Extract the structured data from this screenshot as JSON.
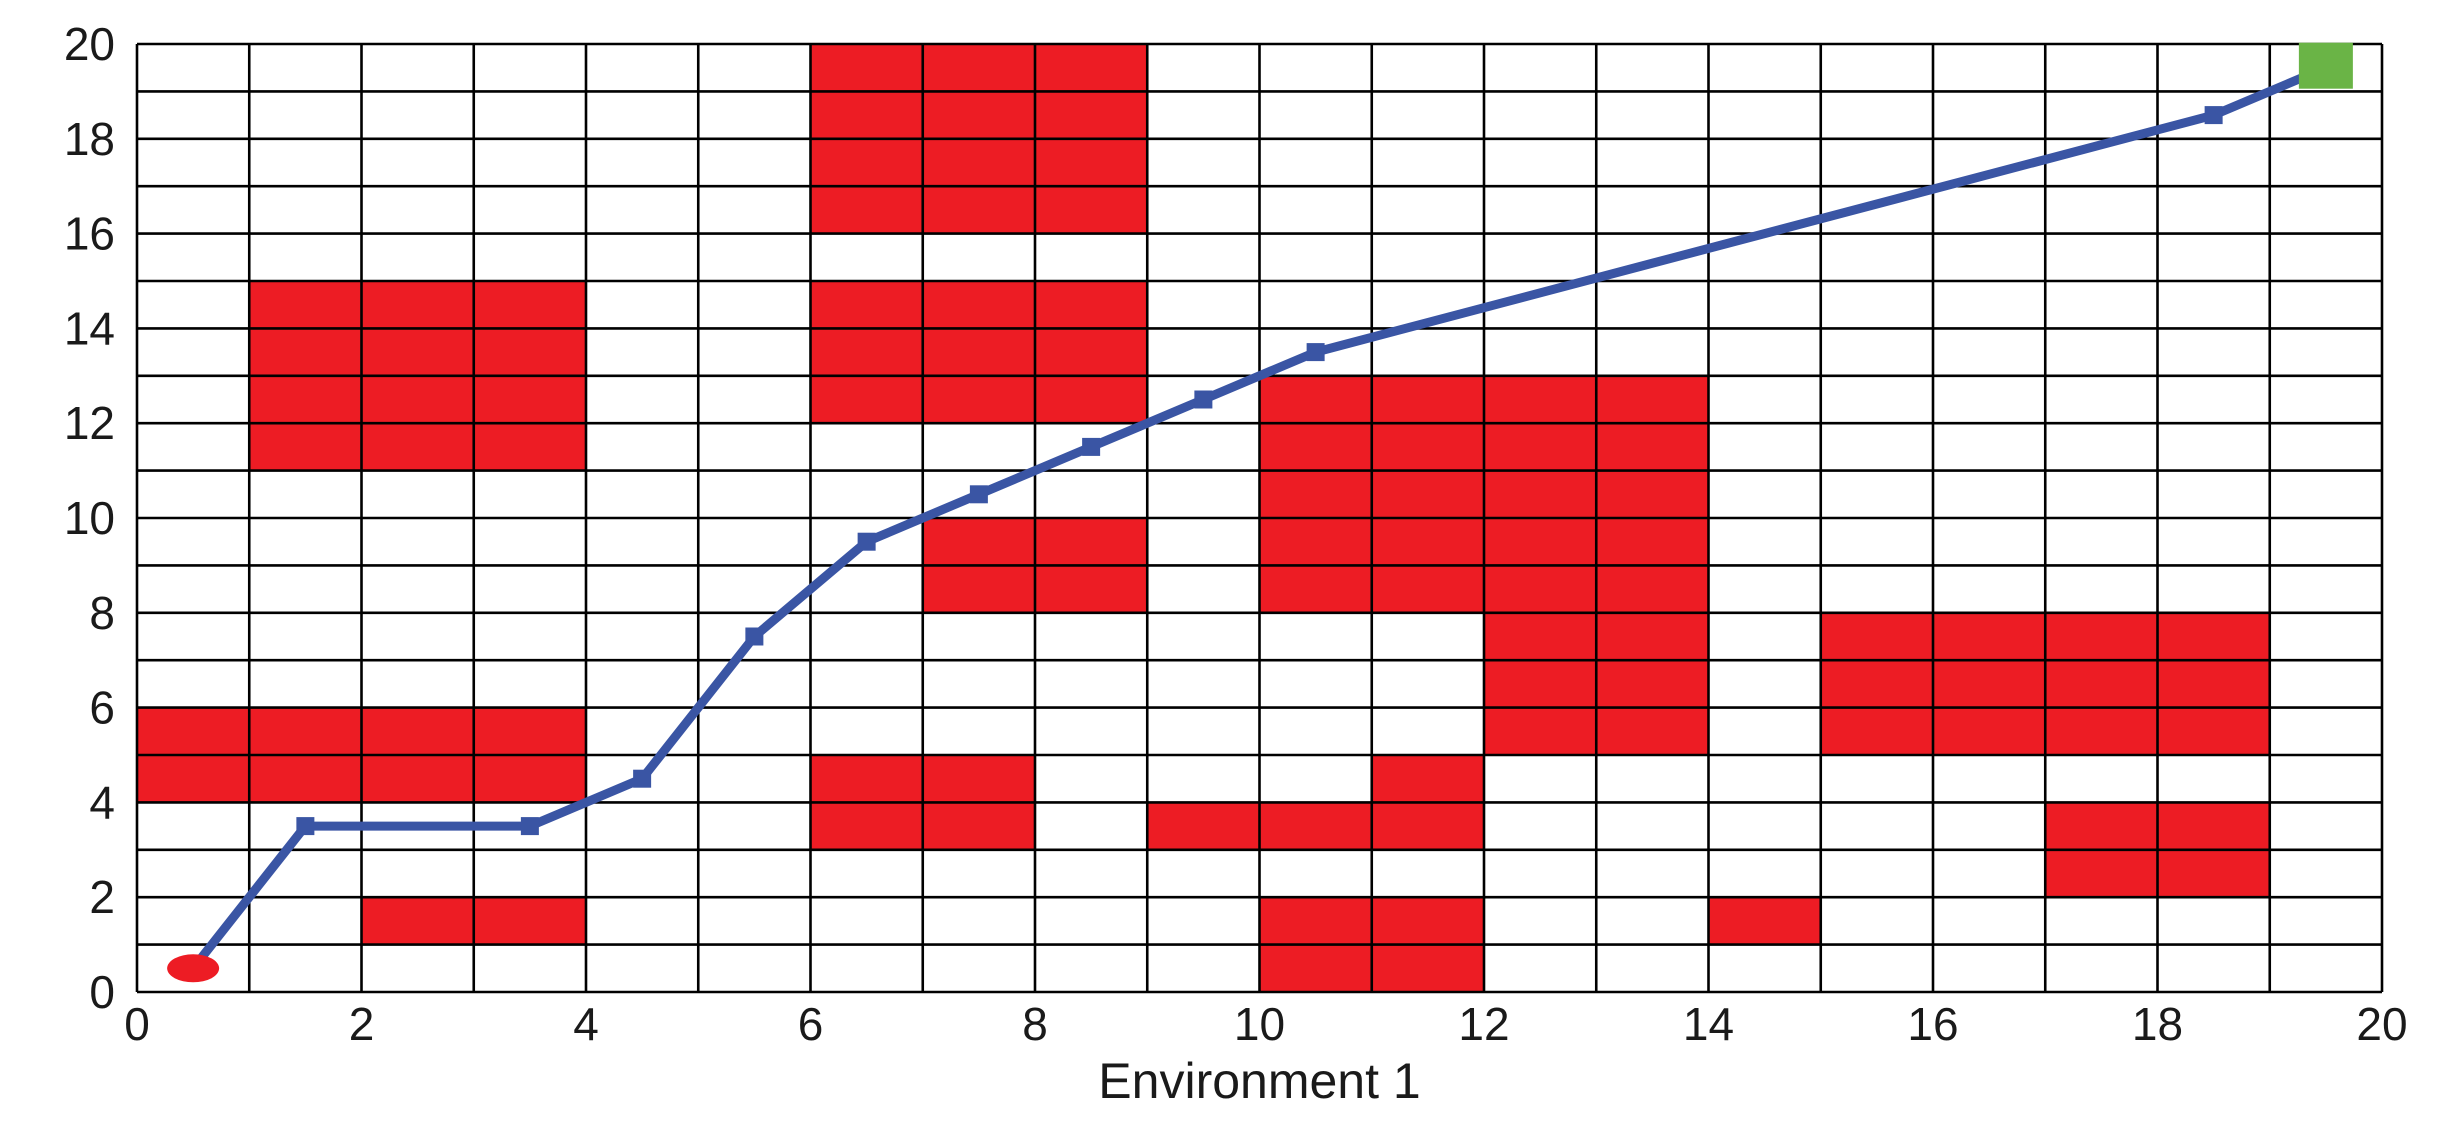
{
  "chart_data": {
    "type": "scatter",
    "title": "",
    "xlabel": "Environment 1",
    "ylabel": "",
    "xlim": [
      0,
      20
    ],
    "ylim": [
      0,
      20
    ],
    "x_ticks": [
      "0",
      "2",
      "4",
      "6",
      "8",
      "10",
      "12",
      "14",
      "16",
      "18",
      "20"
    ],
    "y_ticks": [
      "0",
      "2",
      "4",
      "6",
      "8",
      "10",
      "12",
      "14",
      "16",
      "18",
      "20"
    ],
    "grid": {
      "x_step": 1,
      "y_step": 1,
      "shown": true
    },
    "colors": {
      "obstacle": "#ed1c24",
      "path": "#3a55a4",
      "start": "#ed1c24",
      "goal": "#6ab446",
      "grid": "#000000"
    },
    "obstacles": [
      {
        "x": [
          1,
          4
        ],
        "y": [
          11,
          15
        ]
      },
      {
        "x": [
          6,
          9
        ],
        "y": [
          16,
          20
        ]
      },
      {
        "x": [
          6,
          9
        ],
        "y": [
          12,
          15
        ]
      },
      {
        "x": [
          7,
          9
        ],
        "y": [
          8,
          10
        ]
      },
      {
        "x": [
          10,
          14
        ],
        "y": [
          8,
          13
        ]
      },
      {
        "x": [
          12,
          14
        ],
        "y": [
          5,
          8
        ]
      },
      {
        "x": [
          15,
          19
        ],
        "y": [
          5,
          8
        ]
      },
      {
        "x": [
          0,
          4
        ],
        "y": [
          4,
          6
        ]
      },
      {
        "x": [
          6,
          8
        ],
        "y": [
          3,
          5
        ]
      },
      {
        "x": [
          9,
          12
        ],
        "y": [
          3,
          4
        ]
      },
      {
        "x": [
          11,
          12
        ],
        "y": [
          4,
          5
        ]
      },
      {
        "x": [
          17,
          19
        ],
        "y": [
          2,
          4
        ]
      },
      {
        "x": [
          2,
          4
        ],
        "y": [
          1,
          2
        ]
      },
      {
        "x": [
          10,
          12
        ],
        "y": [
          0,
          2
        ]
      },
      {
        "x": [
          14,
          15
        ],
        "y": [
          1,
          2
        ]
      }
    ],
    "path": {
      "x": [
        0.5,
        1.5,
        3.5,
        4.5,
        5.5,
        6.5,
        7.5,
        8.5,
        9.5,
        10.5,
        18.5,
        19.5
      ],
      "y": [
        0.5,
        3.5,
        3.5,
        4.5,
        7.5,
        9.5,
        10.5,
        11.5,
        12.5,
        13.5,
        18.5,
        19.5
      ]
    },
    "start": {
      "x": 0.5,
      "y": 0.5
    },
    "goal": {
      "x": 19.5,
      "y": 19.5
    }
  }
}
